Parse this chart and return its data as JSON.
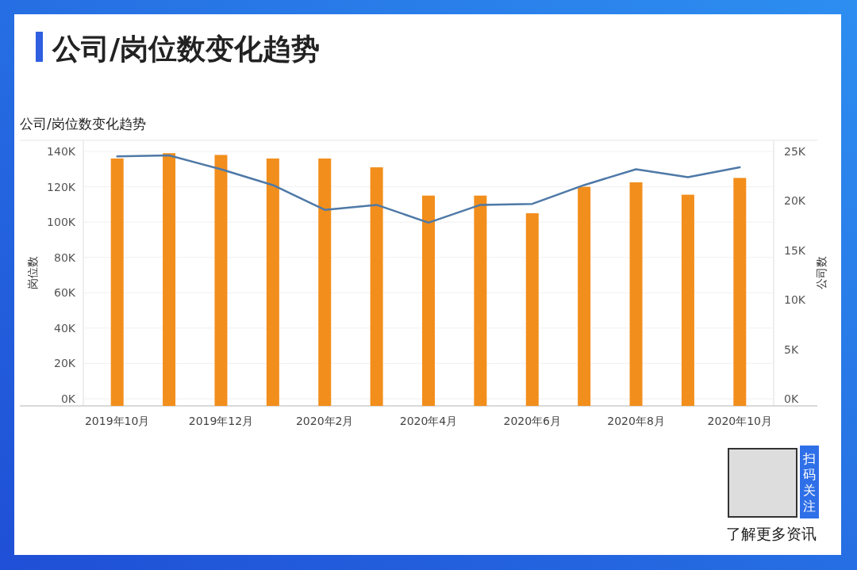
{
  "chart_data": {
    "type": "bar",
    "title": "公司/岗位数变化趋势",
    "subtitle": "公司/岗位数变化趋势",
    "ylabel": "岗位数",
    "y2label": "公司数",
    "categories": [
      "2019年10月",
      null,
      "2019年12月",
      null,
      "2020年2月",
      null,
      "2020年4月",
      null,
      "2020年6月",
      null,
      "2020年8月",
      null,
      "2020年10月"
    ],
    "series": [
      {
        "color": "#f28e1c",
        "values": [
          136000,
          139000,
          138000,
          136000,
          136000,
          131000,
          115000,
          115000,
          105000,
          120000,
          122500,
          115500,
          125000
        ]
      },
      {
        "type": "line",
        "axis": "y2",
        "color": "#4e79a7",
        "values": [
          24500,
          24600,
          23200,
          21600,
          19100,
          19600,
          17800,
          19600,
          19700,
          21600,
          23200,
          22400,
          23400
        ]
      }
    ],
    "ylim": [
      0,
      140000
    ],
    "yticks": [
      {
        "value": 0,
        "label": "0K"
      },
      {
        "value": 20000,
        "label": "20K"
      },
      {
        "value": 40000,
        "label": "40K"
      },
      {
        "value": 60000,
        "label": "60K"
      },
      {
        "value": 80000,
        "label": "80K"
      },
      {
        "value": 100000,
        "label": "100K"
      },
      {
        "value": 120000,
        "label": "120K"
      },
      {
        "value": 140000,
        "label": "140K"
      }
    ],
    "y2lim": [
      0,
      25000
    ],
    "y2ticks": [
      {
        "value": 0,
        "label": "0K"
      },
      {
        "value": 5000,
        "label": "5K"
      },
      {
        "value": 10000,
        "label": "10K"
      },
      {
        "value": 15000,
        "label": "15K"
      },
      {
        "value": 20000,
        "label": "20K"
      },
      {
        "value": 25000,
        "label": "25K"
      }
    ],
    "grid": "y",
    "annotations": [
      "扫码关注",
      "了解更多资讯"
    ]
  }
}
